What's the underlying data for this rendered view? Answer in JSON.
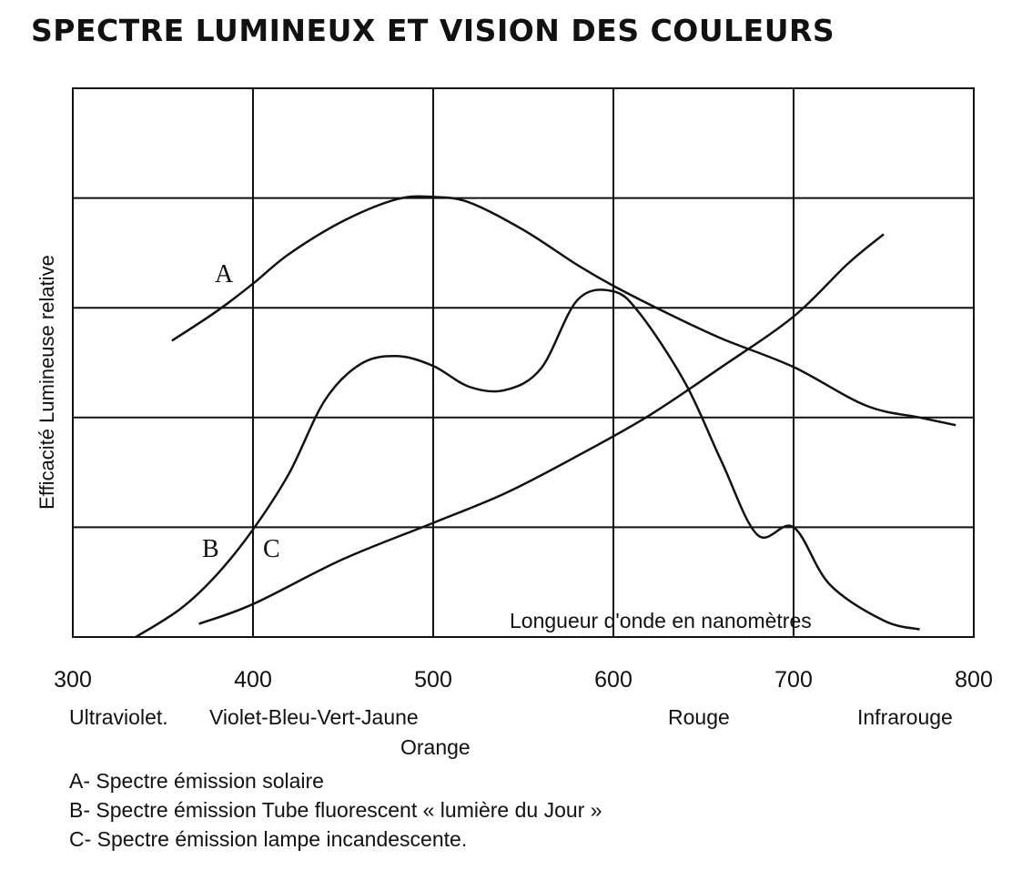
{
  "title": "SPECTRE LUMINEUX ET VISION DES COULEURS",
  "chart_data": {
    "type": "line",
    "ylabel": "Efficacité Lumineuse relative",
    "xlabel": "Longueur d'onde en nanomètres",
    "xlim": [
      300,
      800
    ],
    "ylim": [
      0,
      5
    ],
    "x_ticks": [
      "300",
      "400",
      "500",
      "600",
      "700",
      "800"
    ],
    "grid": true,
    "series": [
      {
        "name": "A",
        "points": [
          [
            355,
            2.7
          ],
          [
            380,
            2.97
          ],
          [
            400,
            3.22
          ],
          [
            420,
            3.49
          ],
          [
            450,
            3.79
          ],
          [
            480,
            3.99
          ],
          [
            500,
            4.01
          ],
          [
            520,
            3.96
          ],
          [
            550,
            3.71
          ],
          [
            580,
            3.39
          ],
          [
            600,
            3.2
          ],
          [
            630,
            2.95
          ],
          [
            660,
            2.72
          ],
          [
            700,
            2.46
          ],
          [
            740,
            2.11
          ],
          [
            770,
            2.0
          ],
          [
            790,
            1.93
          ]
        ]
      },
      {
        "name": "B",
        "points": [
          [
            335,
            0.0
          ],
          [
            360,
            0.26
          ],
          [
            380,
            0.57
          ],
          [
            400,
            0.98
          ],
          [
            420,
            1.49
          ],
          [
            440,
            2.16
          ],
          [
            460,
            2.49
          ],
          [
            480,
            2.56
          ],
          [
            500,
            2.47
          ],
          [
            520,
            2.28
          ],
          [
            540,
            2.25
          ],
          [
            560,
            2.45
          ],
          [
            580,
            3.07
          ],
          [
            600,
            3.15
          ],
          [
            615,
            2.94
          ],
          [
            640,
            2.31
          ],
          [
            660,
            1.6
          ],
          [
            680,
            0.93
          ],
          [
            700,
            1.0
          ],
          [
            720,
            0.48
          ],
          [
            750,
            0.15
          ],
          [
            770,
            0.07
          ]
        ]
      },
      {
        "name": "C",
        "points": [
          [
            370,
            0.12
          ],
          [
            400,
            0.3
          ],
          [
            450,
            0.71
          ],
          [
            500,
            1.04
          ],
          [
            540,
            1.31
          ],
          [
            580,
            1.65
          ],
          [
            620,
            2.02
          ],
          [
            660,
            2.46
          ],
          [
            700,
            2.92
          ],
          [
            730,
            3.4
          ],
          [
            750,
            3.67
          ]
        ]
      }
    ],
    "annotations": [
      "A",
      "B",
      "C"
    ]
  },
  "categories": {
    "uv": "Ultraviolet.",
    "visible": "Violet-Bleu-Vert-Jaune",
    "orange": "Orange",
    "rouge": "Rouge",
    "ir": "Infrarouge"
  },
  "legend": [
    "A-  Spectre émission solaire",
    "B-  Spectre émission Tube fluorescent « lumière du Jour »",
    "C-  Spectre émission lampe incandescente."
  ]
}
